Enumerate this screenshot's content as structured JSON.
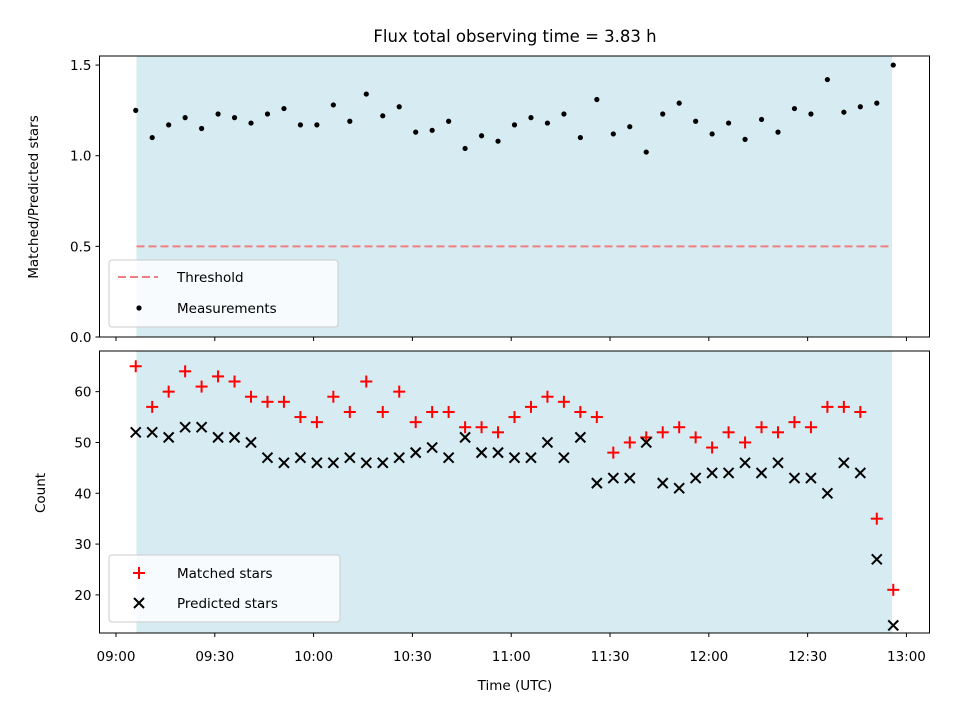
{
  "chart_data": [
    {
      "type": "scatter",
      "title": "Flux total observing time = 3.83 h",
      "ylabel": "Matched/Predicted stars",
      "xlabel": "",
      "xlim": [
        "08:55",
        "13:07"
      ],
      "ylim": [
        0,
        1.55
      ],
      "yticks": [
        "0.0",
        "0.5",
        "1.0",
        "1.5"
      ],
      "observing_window": [
        "09:06",
        "12:56"
      ],
      "threshold": 0.5,
      "legend": {
        "position": "lower left",
        "entries": [
          "Threshold",
          "Measurements"
        ]
      },
      "series": [
        {
          "name": "Measurements",
          "x": [
            "09:06",
            "09:11",
            "09:16",
            "09:21",
            "09:26",
            "09:31",
            "09:36",
            "09:41",
            "09:46",
            "09:51",
            "09:56",
            "10:01",
            "10:06",
            "10:11",
            "10:16",
            "10:21",
            "10:26",
            "10:31",
            "10:36",
            "10:41",
            "10:46",
            "10:51",
            "10:56",
            "11:01",
            "11:06",
            "11:11",
            "11:16",
            "11:21",
            "11:26",
            "11:31",
            "11:36",
            "11:41",
            "11:46",
            "11:51",
            "11:56",
            "12:01",
            "12:06",
            "12:11",
            "12:16",
            "12:21",
            "12:26",
            "12:31",
            "12:36",
            "12:41",
            "12:46",
            "12:51",
            "12:56"
          ],
          "y": [
            1.25,
            1.1,
            1.17,
            1.21,
            1.15,
            1.23,
            1.21,
            1.18,
            1.23,
            1.26,
            1.17,
            1.17,
            1.28,
            1.19,
            1.34,
            1.22,
            1.27,
            1.13,
            1.14,
            1.19,
            1.04,
            1.11,
            1.08,
            1.17,
            1.21,
            1.18,
            1.23,
            1.1,
            1.31,
            1.12,
            1.16,
            1.02,
            1.23,
            1.29,
            1.19,
            1.12,
            1.18,
            1.09,
            1.2,
            1.13,
            1.26,
            1.23,
            1.42,
            1.24,
            1.27,
            1.29,
            1.5
          ]
        }
      ],
      "colors": {
        "threshold": "#f08080",
        "measurements": "#000000",
        "window": "#add8e6"
      }
    },
    {
      "type": "scatter",
      "title": "",
      "ylabel": "Count",
      "xlabel": "Time (UTC)",
      "xlim": [
        "08:55",
        "13:07"
      ],
      "ylim": [
        12.5,
        68
      ],
      "yticks": [
        "20",
        "30",
        "40",
        "50",
        "60"
      ],
      "xticks": [
        "09:00",
        "09:30",
        "10:00",
        "10:30",
        "11:00",
        "11:30",
        "12:00",
        "12:30",
        "13:00"
      ],
      "observing_window": [
        "09:06",
        "12:56"
      ],
      "legend": {
        "position": "lower left",
        "entries": [
          "Matched stars",
          "Predicted stars"
        ]
      },
      "series": [
        {
          "name": "Matched stars",
          "marker": "+",
          "x": [
            "09:06",
            "09:11",
            "09:16",
            "09:21",
            "09:26",
            "09:31",
            "09:36",
            "09:41",
            "09:46",
            "09:51",
            "09:56",
            "10:01",
            "10:06",
            "10:11",
            "10:16",
            "10:21",
            "10:26",
            "10:31",
            "10:36",
            "10:41",
            "10:46",
            "10:51",
            "10:56",
            "11:01",
            "11:06",
            "11:11",
            "11:16",
            "11:21",
            "11:26",
            "11:31",
            "11:36",
            "11:41",
            "11:46",
            "11:51",
            "11:56",
            "12:01",
            "12:06",
            "12:11",
            "12:16",
            "12:21",
            "12:26",
            "12:31",
            "12:36",
            "12:41",
            "12:46",
            "12:51",
            "12:56"
          ],
          "y": [
            65,
            57,
            60,
            64,
            61,
            63,
            62,
            59,
            58,
            58,
            55,
            54,
            59,
            56,
            62,
            56,
            60,
            54,
            56,
            56,
            53,
            53,
            52,
            55,
            57,
            59,
            58,
            56,
            55,
            48,
            50,
            51,
            52,
            53,
            51,
            49,
            52,
            50,
            53,
            52,
            54,
            53,
            57,
            57,
            56,
            35,
            21
          ]
        },
        {
          "name": "Predicted stars",
          "marker": "x",
          "x": [
            "09:06",
            "09:11",
            "09:16",
            "09:21",
            "09:26",
            "09:31",
            "09:36",
            "09:41",
            "09:46",
            "09:51",
            "09:56",
            "10:01",
            "10:06",
            "10:11",
            "10:16",
            "10:21",
            "10:26",
            "10:31",
            "10:36",
            "10:41",
            "10:46",
            "10:51",
            "10:56",
            "11:01",
            "11:06",
            "11:11",
            "11:16",
            "11:21",
            "11:26",
            "11:31",
            "11:36",
            "11:41",
            "11:46",
            "11:51",
            "11:56",
            "12:01",
            "12:06",
            "12:11",
            "12:16",
            "12:21",
            "12:26",
            "12:31",
            "12:36",
            "12:41",
            "12:46",
            "12:51",
            "12:56"
          ],
          "y": [
            52,
            52,
            51,
            53,
            53,
            51,
            51,
            50,
            47,
            46,
            47,
            46,
            46,
            47,
            46,
            46,
            47,
            48,
            49,
            47,
            51,
            48,
            48,
            47,
            47,
            50,
            47,
            51,
            42,
            43,
            43,
            50,
            42,
            41,
            43,
            44,
            44,
            46,
            44,
            46,
            43,
            43,
            40,
            46,
            44,
            27,
            14
          ]
        }
      ],
      "colors": {
        "matched": "#ff0000",
        "predicted": "#000000",
        "window": "#add8e6"
      }
    }
  ]
}
